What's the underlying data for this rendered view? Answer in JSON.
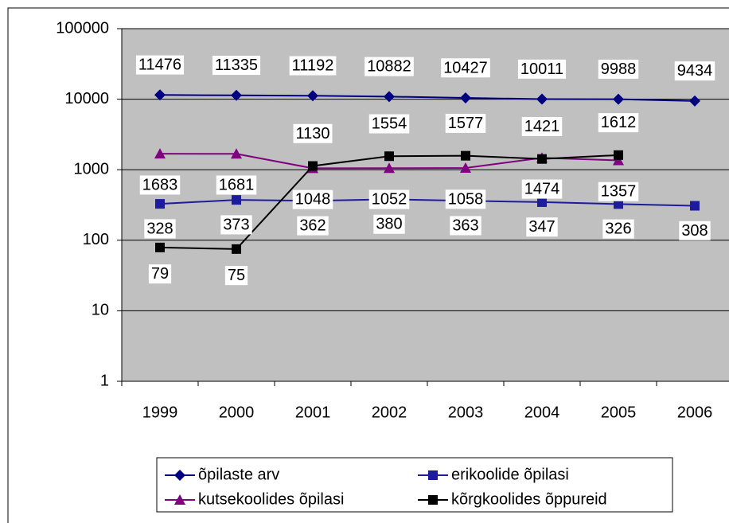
{
  "chart_data": {
    "type": "line",
    "categories": [
      "1999",
      "2000",
      "2001",
      "2002",
      "2003",
      "2004",
      "2005",
      "2006"
    ],
    "series": [
      {
        "name": "õpilaste arv",
        "color": "#000080",
        "marker": "diamond",
        "values": [
          11476,
          11335,
          11192,
          10882,
          10427,
          10011,
          9988,
          9434
        ]
      },
      {
        "name": "erikoolide õpilasi",
        "color": "#1c1c9c",
        "marker": "square",
        "values": [
          328,
          373,
          362,
          380,
          363,
          347,
          326,
          308
        ]
      },
      {
        "name": "kutsekoolides õpilasi",
        "color": "#800080",
        "marker": "triangle",
        "values": [
          1683,
          1681,
          1048,
          1052,
          1058,
          1474,
          1357,
          null
        ]
      },
      {
        "name": "kõrgkoolides õppureid",
        "color": "#000000",
        "marker": "square",
        "values": [
          79,
          75,
          1130,
          1554,
          1577,
          1421,
          1612,
          null
        ]
      }
    ],
    "ylim": [
      1,
      100000
    ],
    "yticks": [
      1,
      10,
      100,
      1000,
      10000,
      100000
    ],
    "yscale": "log",
    "grid": true,
    "legend": "bottom"
  }
}
